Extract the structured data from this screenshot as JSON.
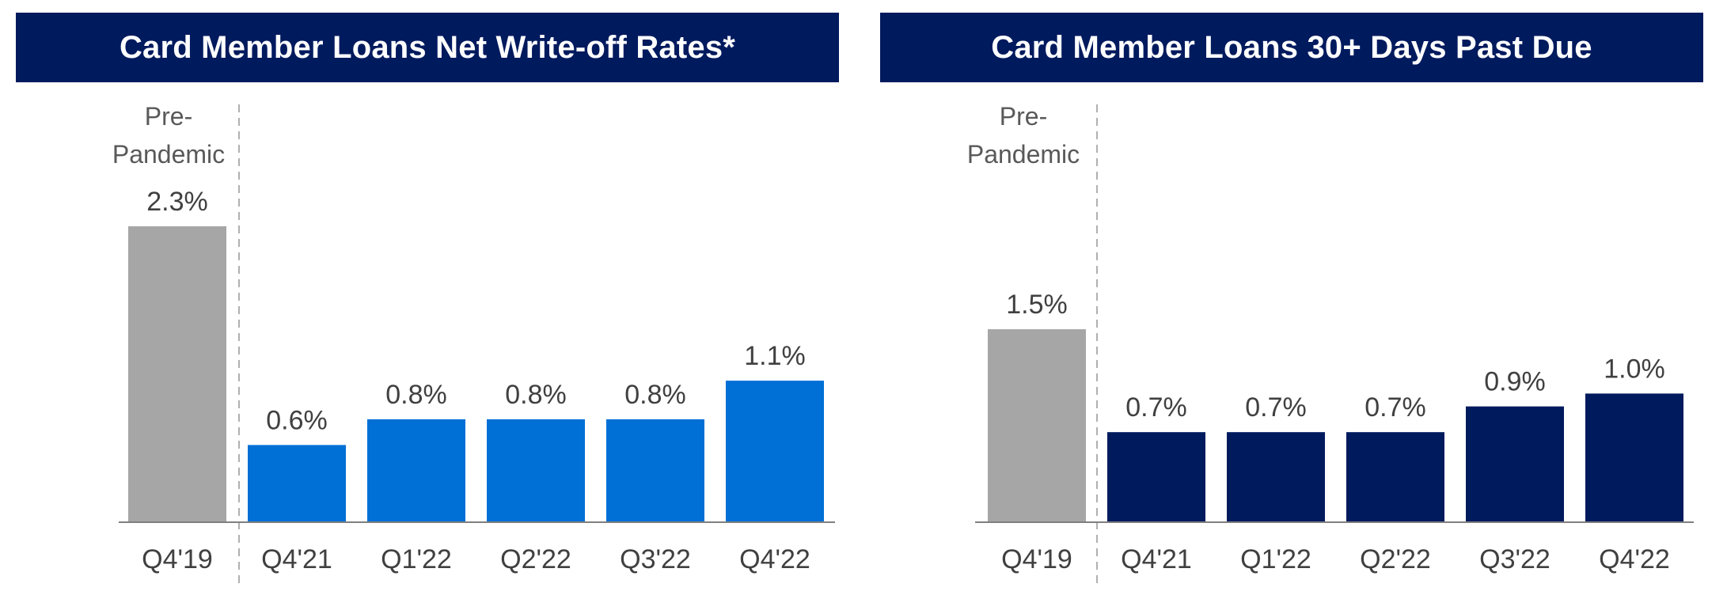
{
  "chart_data": [
    {
      "type": "bar",
      "title": "Card Member Loans Net Write-off Rates*",
      "annotation": "Pre-\nPandemic",
      "categories": [
        "Q4'19",
        "Q4'21",
        "Q1'22",
        "Q2'22",
        "Q3'22",
        "Q4'22"
      ],
      "values": [
        2.3,
        0.6,
        0.8,
        0.8,
        0.8,
        1.1
      ],
      "value_labels": [
        "2.3%",
        "0.6%",
        "0.8%",
        "0.8%",
        "0.8%",
        "1.1%"
      ],
      "ylim": [
        0,
        2.3
      ],
      "colors": {
        "baseline_bar": "#a6a6a6",
        "bars": "#006fd6",
        "title_bg": "#001a5e"
      }
    },
    {
      "type": "bar",
      "title": "Card Member Loans 30+ Days Past Due",
      "annotation": "Pre-\nPandemic",
      "categories": [
        "Q4'19",
        "Q4'21",
        "Q1'22",
        "Q2'22",
        "Q3'22",
        "Q4'22"
      ],
      "values": [
        1.5,
        0.7,
        0.7,
        0.7,
        0.9,
        1.0
      ],
      "value_labels": [
        "1.5%",
        "0.7%",
        "0.7%",
        "0.7%",
        "0.9%",
        "1.0%"
      ],
      "ylim": [
        0,
        2.3
      ],
      "colors": {
        "baseline_bar": "#a6a6a6",
        "bars": "#001a5e",
        "title_bg": "#001a5e"
      }
    }
  ]
}
